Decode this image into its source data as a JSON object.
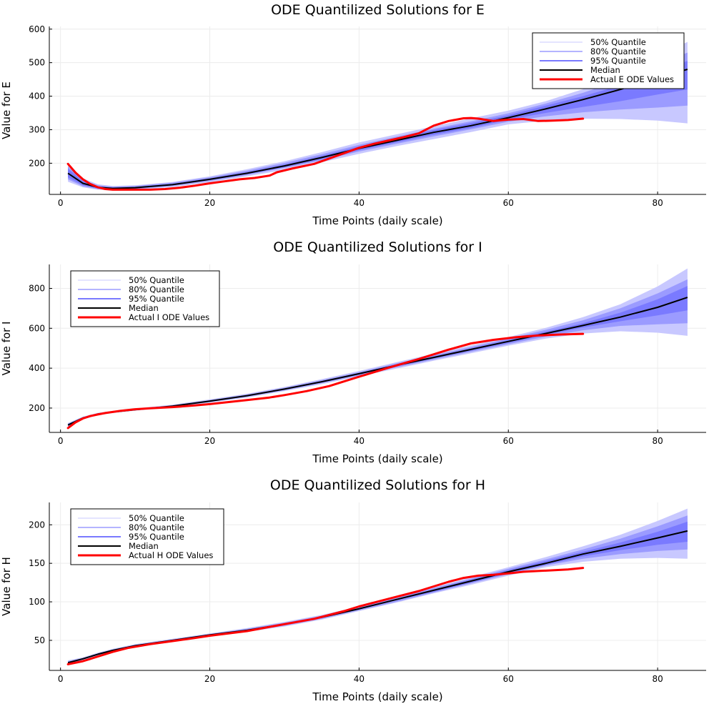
{
  "colors": {
    "band50": "#c8c8ff",
    "band80": "#9b9bff",
    "band95": "#7a7aff",
    "median": "#000000",
    "actual": "#ff0000",
    "grid": "#ececec"
  },
  "legend": {
    "q50": "50% Quantile",
    "q80": "80% Quantile",
    "q95": "95% Quantile",
    "median": "Median"
  },
  "chart_data": [
    {
      "type": "line",
      "title": "ODE Quantilized Solutions for E",
      "xlabel": "Time Points (daily scale)",
      "ylabel": "Value for E",
      "xlim": [
        -1.5,
        86.5
      ],
      "ylim": [
        107,
        608
      ],
      "xticks": [
        0,
        20,
        40,
        60,
        80
      ],
      "yticks": [
        200,
        300,
        400,
        500,
        600
      ],
      "legend_position": "top-right",
      "actual_label": "Actual E ODE Values",
      "x": [
        1,
        3,
        5,
        7,
        10,
        15,
        20,
        25,
        30,
        35,
        40,
        45,
        50,
        55,
        60,
        65,
        70,
        75,
        80,
        84
      ],
      "median": [
        170,
        140,
        128,
        125,
        127,
        136,
        152,
        170,
        192,
        217,
        244,
        268,
        292,
        312,
        336,
        362,
        390,
        420,
        455,
        480
      ],
      "bands": {
        "q50": {
          "low": [
            145,
            128,
            121,
            119,
            121,
            129,
            143,
            161,
            180,
            203,
            228,
            251,
            272,
            293,
            316,
            327,
            333,
            332,
            327,
            319
          ],
          "high": [
            196,
            155,
            137,
            132,
            134,
            144,
            161,
            182,
            206,
            233,
            262,
            286,
            310,
            334,
            357,
            385,
            421,
            462,
            520,
            562
          ]
        },
        "q80": {
          "low": [
            152,
            131,
            123,
            121,
            123,
            132,
            147,
            165,
            186,
            209,
            235,
            258,
            280,
            301,
            324,
            340,
            352,
            360,
            366,
            372
          ],
          "high": [
            190,
            150,
            134,
            130,
            132,
            142,
            158,
            178,
            201,
            227,
            255,
            279,
            303,
            325,
            349,
            378,
            410,
            448,
            495,
            530
          ]
        },
        "q95": {
          "low": [
            158,
            134,
            125,
            122,
            124,
            134,
            149,
            167,
            188,
            212,
            239,
            262,
            285,
            305,
            330,
            350,
            368,
            385,
            405,
            420
          ],
          "high": [
            184,
            146,
            131,
            128,
            130,
            139,
            155,
            174,
            196,
            222,
            250,
            274,
            299,
            320,
            343,
            372,
            400,
            432,
            472,
            505
          ]
        }
      },
      "actual": {
        "x": [
          1,
          2,
          3,
          4,
          5,
          6,
          7,
          8,
          10,
          12,
          14,
          16,
          18,
          20,
          22,
          24,
          26,
          28,
          29,
          31,
          34,
          36,
          38,
          40,
          42,
          44,
          46,
          48,
          50,
          52,
          54,
          55,
          56,
          58,
          60,
          62,
          64,
          66,
          68,
          70
        ],
        "y": [
          198,
          172,
          152,
          138,
          128,
          123,
          121,
          121,
          121,
          121,
          123,
          127,
          133,
          140,
          146,
          152,
          156,
          163,
          173,
          184,
          198,
          214,
          230,
          246,
          258,
          268,
          278,
          289,
          312,
          326,
          334,
          335,
          333,
          326,
          330,
          332,
          326,
          327,
          329,
          333
        ]
      }
    },
    {
      "type": "line",
      "title": "ODE Quantilized Solutions for I",
      "xlabel": "Time Points (daily scale)",
      "ylabel": "Value for I",
      "xlim": [
        -1.5,
        86.5
      ],
      "ylim": [
        78,
        920
      ],
      "xticks": [
        0,
        20,
        40,
        60,
        80
      ],
      "yticks": [
        200,
        400,
        600,
        800
      ],
      "legend_position": "top-left",
      "actual_label": "Actual I ODE Values",
      "x": [
        1,
        3,
        5,
        7,
        10,
        15,
        20,
        25,
        30,
        35,
        40,
        45,
        50,
        55,
        60,
        65,
        70,
        75,
        80,
        84
      ],
      "median": [
        115,
        150,
        170,
        180,
        192,
        210,
        235,
        262,
        295,
        332,
        372,
        414,
        454,
        494,
        534,
        574,
        614,
        656,
        705,
        755
      ],
      "bands": {
        "q50": {
          "low": [
            105,
            143,
            164,
            175,
            187,
            204,
            227,
            253,
            285,
            320,
            359,
            398,
            437,
            475,
            513,
            548,
            574,
            585,
            578,
            562
          ],
          "high": [
            125,
            157,
            176,
            186,
            198,
            217,
            244,
            272,
            306,
            345,
            386,
            430,
            472,
            514,
            556,
            602,
            656,
            720,
            810,
            900
          ]
        },
        "q80": {
          "low": [
            108,
            145,
            166,
            177,
            189,
            206,
            230,
            256,
            289,
            325,
            364,
            404,
            443,
            482,
            520,
            558,
            590,
            612,
            620,
            625
          ],
          "high": [
            122,
            155,
            174,
            184,
            196,
            214,
            240,
            268,
            302,
            340,
            380,
            424,
            465,
            506,
            548,
            592,
            640,
            700,
            775,
            845
          ]
        },
        "q95": {
          "low": [
            111,
            147,
            168,
            178,
            190,
            208,
            232,
            259,
            292,
            328,
            368,
            409,
            449,
            488,
            527,
            566,
            604,
            635,
            665,
            690
          ],
          "high": [
            119,
            153,
            172,
            182,
            194,
            212,
            238,
            265,
            298,
            336,
            376,
            419,
            459,
            500,
            541,
            582,
            625,
            678,
            745,
            812
          ]
        }
      },
      "actual": {
        "x": [
          1,
          2,
          3,
          4,
          5,
          6,
          8,
          10,
          12,
          15,
          18,
          20,
          22,
          25,
          28,
          30,
          33,
          36,
          40,
          44,
          48,
          52,
          55,
          58,
          61,
          64,
          67,
          70
        ],
        "y": [
          100,
          128,
          148,
          160,
          168,
          175,
          186,
          194,
          199,
          205,
          213,
          220,
          228,
          240,
          253,
          265,
          285,
          310,
          357,
          403,
          446,
          493,
          524,
          542,
          555,
          564,
          569,
          572
        ]
      }
    },
    {
      "type": "line",
      "title": "ODE Quantilized Solutions for H",
      "xlabel": "Time Points (daily scale)",
      "ylabel": "Value for H",
      "xlim": [
        -1.5,
        86.5
      ],
      "ylim": [
        11,
        229
      ],
      "xticks": [
        0,
        20,
        40,
        60,
        80
      ],
      "yticks": [
        50,
        100,
        150,
        200
      ],
      "legend_position": "top-left",
      "actual_label": "Actual H ODE Values",
      "x": [
        1,
        3,
        5,
        7,
        10,
        15,
        20,
        25,
        30,
        35,
        40,
        45,
        50,
        55,
        60,
        65,
        70,
        75,
        80,
        84
      ],
      "median": [
        21,
        26,
        32,
        37,
        43,
        50,
        57,
        63,
        71,
        80,
        91,
        103,
        115,
        127,
        139,
        150,
        162,
        172,
        183,
        192
      ],
      "bands": {
        "q50": {
          "low": [
            18,
            24,
            30,
            35,
            41,
            48,
            55,
            61,
            68,
            77,
            88,
            99,
            111,
            122,
            134,
            145,
            152,
            156,
            157,
            156
          ],
          "high": [
            24,
            28,
            34,
            39,
            45,
            52,
            59,
            66,
            74,
            83,
            94,
            106,
            119,
            132,
            145,
            158,
            172,
            187,
            205,
            221
          ]
        },
        "q80": {
          "low": [
            19,
            25,
            31,
            36,
            42,
            49,
            56,
            62,
            69,
            78,
            89,
            100,
            112,
            124,
            136,
            147,
            156,
            162,
            166,
            168
          ],
          "high": [
            23,
            27,
            33,
            38,
            44,
            51,
            58,
            65,
            73,
            82,
            93,
            105,
            118,
            130,
            143,
            155,
            168,
            182,
            198,
            212
          ]
        },
        "q95": {
          "low": [
            20,
            25,
            31,
            36,
            42,
            49,
            56,
            62,
            70,
            79,
            90,
            102,
            113,
            125,
            137,
            148,
            159,
            167,
            174,
            178
          ],
          "high": [
            22,
            27,
            33,
            38,
            44,
            51,
            58,
            64,
            72,
            81,
            92,
            104,
            116,
            129,
            141,
            153,
            165,
            177,
            191,
            204
          ]
        }
      },
      "actual": {
        "x": [
          1,
          3,
          5,
          7,
          9,
          12,
          15,
          18,
          20,
          25,
          30,
          34,
          38,
          40,
          44,
          48,
          50,
          52,
          54,
          56,
          58,
          60,
          62,
          64,
          66,
          68,
          70
        ],
        "y": [
          19,
          23,
          29,
          35,
          40,
          45,
          49,
          53,
          56,
          62,
          71,
          78,
          88,
          94,
          104,
          114,
          120,
          126,
          131,
          134,
          135,
          137,
          139,
          140,
          141,
          142,
          144
        ]
      }
    }
  ]
}
